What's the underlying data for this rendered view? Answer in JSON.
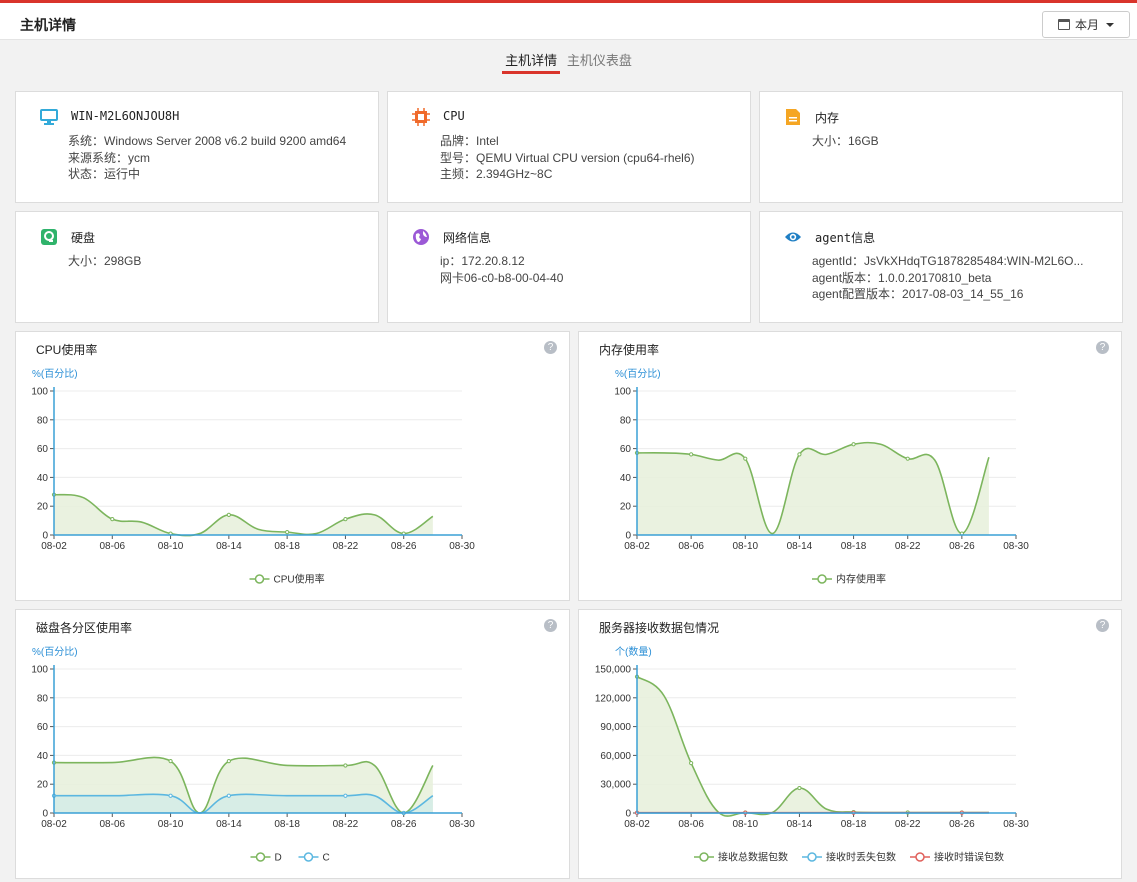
{
  "header": {
    "title": "主机详情",
    "month_label": "本月"
  },
  "tabs": [
    {
      "label": "主机详情",
      "active": true
    },
    {
      "label": "主机仪表盘",
      "active": false
    }
  ],
  "cards": {
    "host": {
      "title": "WIN-M2L6ONJOU8H",
      "lines": [
        "系统：Windows Server 2008 v6.2 build 9200 amd64",
        "来源系统：ycm",
        "状态：运行中"
      ]
    },
    "cpu": {
      "title": "CPU",
      "lines": [
        "品牌：Intel",
        "型号：QEMU Virtual CPU version (cpu64-rhel6)",
        "主频：2.394GHz~8C"
      ]
    },
    "memory": {
      "title": "内存",
      "lines": [
        "大小：16GB"
      ]
    },
    "disk": {
      "title": "硬盘",
      "lines": [
        "大小：298GB"
      ]
    },
    "network": {
      "title": "网络信息",
      "lines": [
        "ip：172.20.8.12",
        "网卡06-c0-b8-00-04-40"
      ]
    },
    "agent": {
      "title": "agent信息",
      "lines": [
        "agentId：JsVkXHdqTG1878285484:WIN-M2L6O...",
        "agent版本：1.0.0.20170810_beta",
        "agent配置版本：2017-08-03_14_55_16"
      ]
    }
  },
  "chart_data": [
    {
      "type": "line",
      "title": "CPU使用率",
      "ylabel": "%(百分比)",
      "x_ticks": [
        "08-02",
        "08-06",
        "08-10",
        "08-14",
        "08-18",
        "08-22",
        "08-26",
        "08-30"
      ],
      "y_ticks": [
        "0",
        "20",
        "40",
        "60",
        "80",
        "100"
      ],
      "ylim": [
        0,
        100
      ],
      "legend_position": "bottom",
      "grid": true,
      "series": [
        {
          "name": "CPU使用率",
          "color": "#7cb55d",
          "fill": "#e6f0da",
          "points": [
            [
              0,
              28
            ],
            [
              2,
              26
            ],
            [
              4,
              11
            ],
            [
              6,
              9
            ],
            [
              8,
              1
            ],
            [
              10,
              1
            ],
            [
              12,
              14
            ],
            [
              14,
              4
            ],
            [
              16,
              2
            ],
            [
              18,
              1
            ],
            [
              20,
              11
            ],
            [
              22,
              14
            ],
            [
              24,
              1
            ],
            [
              26,
              13
            ]
          ]
        }
      ]
    },
    {
      "type": "line",
      "title": "内存使用率",
      "ylabel": "%(百分比)",
      "x_ticks": [
        "08-02",
        "08-06",
        "08-10",
        "08-14",
        "08-18",
        "08-22",
        "08-26",
        "08-30"
      ],
      "y_ticks": [
        "0",
        "20",
        "40",
        "60",
        "80",
        "100"
      ],
      "ylim": [
        0,
        100
      ],
      "legend_position": "bottom",
      "grid": true,
      "series": [
        {
          "name": "内存使用率",
          "color": "#7cb55d",
          "fill": "#e6f0da",
          "points": [
            [
              0,
              57
            ],
            [
              2,
              57
            ],
            [
              4,
              56
            ],
            [
              6,
              52
            ],
            [
              8,
              53
            ],
            [
              10,
              1
            ],
            [
              12,
              56
            ],
            [
              14,
              56
            ],
            [
              16,
              63
            ],
            [
              18,
              63
            ],
            [
              20,
              53
            ],
            [
              22,
              52
            ],
            [
              24,
              1
            ],
            [
              26,
              54
            ]
          ]
        }
      ]
    },
    {
      "type": "line",
      "title": "磁盘各分区使用率",
      "ylabel": "%(百分比)",
      "x_ticks": [
        "08-02",
        "08-06",
        "08-10",
        "08-14",
        "08-18",
        "08-22",
        "08-26",
        "08-30"
      ],
      "y_ticks": [
        "0",
        "20",
        "40",
        "60",
        "80",
        "100"
      ],
      "ylim": [
        0,
        100
      ],
      "legend_position": "bottom",
      "grid": true,
      "series": [
        {
          "name": "D",
          "color": "#7cb55d",
          "fill": "#e6f0da",
          "points": [
            [
              0,
              35
            ],
            [
              4,
              35
            ],
            [
              8,
              36
            ],
            [
              10,
              0
            ],
            [
              12,
              36
            ],
            [
              16,
              33
            ],
            [
              20,
              33
            ],
            [
              22,
              33
            ],
            [
              24,
              0
            ],
            [
              26,
              33
            ]
          ]
        },
        {
          "name": "C",
          "color": "#5bb7e0",
          "fill": "#d3ece6",
          "points": [
            [
              0,
              12
            ],
            [
              4,
              12
            ],
            [
              8,
              12
            ],
            [
              10,
              0
            ],
            [
              12,
              12
            ],
            [
              16,
              12
            ],
            [
              20,
              12
            ],
            [
              22,
              12
            ],
            [
              24,
              0
            ],
            [
              26,
              12
            ]
          ]
        }
      ]
    },
    {
      "type": "line",
      "title": "服务器接收数据包情况",
      "ylabel": "个(数量)",
      "x_ticks": [
        "08-02",
        "08-06",
        "08-10",
        "08-14",
        "08-18",
        "08-22",
        "08-26",
        "08-30"
      ],
      "y_ticks": [
        "0",
        "30,000",
        "60,000",
        "90,000",
        "120,000",
        "150,000"
      ],
      "ylim": [
        0,
        150000
      ],
      "legend_position": "bottom",
      "grid": true,
      "series": [
        {
          "name": "接收总数据包数",
          "color": "#7cb55d",
          "fill": "#e6f0da",
          "points": [
            [
              0,
              142000
            ],
            [
              2,
              122000
            ],
            [
              4,
              52000
            ],
            [
              6,
              1000
            ],
            [
              8,
              500
            ],
            [
              10,
              500
            ],
            [
              12,
              26000
            ],
            [
              14,
              4000
            ],
            [
              16,
              1000
            ],
            [
              18,
              500
            ],
            [
              20,
              500
            ],
            [
              22,
              500
            ],
            [
              24,
              500
            ],
            [
              26,
              500
            ]
          ]
        },
        {
          "name": "接收时丢失包数",
          "color": "#5bb7e0",
          "fill": "none",
          "points": [
            [
              0,
              0
            ],
            [
              26,
              0
            ]
          ]
        },
        {
          "name": "接收时错误包数",
          "color": "#e0605b",
          "fill": "none",
          "points": [
            [
              0,
              300
            ],
            [
              4,
              300
            ],
            [
              8,
              300
            ],
            [
              12,
              300
            ],
            [
              16,
              300
            ],
            [
              20,
              300
            ],
            [
              24,
              300
            ],
            [
              26,
              300
            ]
          ]
        }
      ]
    }
  ]
}
